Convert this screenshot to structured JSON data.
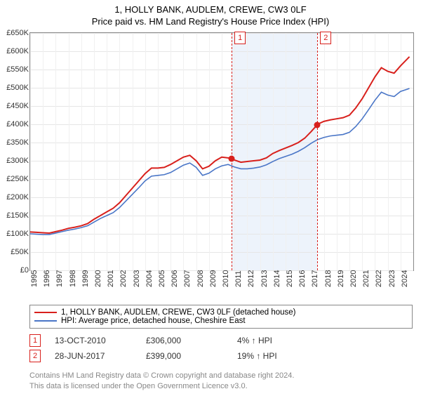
{
  "title_line1": "1, HOLLY BANK, AUDLEM, CREWE, CW3 0LF",
  "title_line2": "Price paid vs. HM Land Registry's House Price Index (HPI)",
  "chart": {
    "type": "line",
    "background_color": "#ffffff",
    "grid_color": "#e6e6e6",
    "border_color": "#888888",
    "x_years": [
      1995,
      1996,
      1997,
      1998,
      1999,
      2000,
      2001,
      2002,
      2003,
      2004,
      2005,
      2006,
      2007,
      2008,
      2009,
      2010,
      2011,
      2012,
      2013,
      2014,
      2015,
      2016,
      2017,
      2018,
      2019,
      2020,
      2021,
      2022,
      2023,
      2024
    ],
    "x_range": [
      1995,
      2025
    ],
    "y_ticks": [
      0,
      50000,
      100000,
      150000,
      200000,
      250000,
      300000,
      350000,
      400000,
      450000,
      500000,
      550000,
      600000,
      650000
    ],
    "y_tick_labels": [
      "£0",
      "£50K",
      "£100K",
      "£150K",
      "£200K",
      "£250K",
      "£300K",
      "£350K",
      "£400K",
      "£450K",
      "£500K",
      "£550K",
      "£600K",
      "£650K"
    ],
    "y_range": [
      0,
      650000
    ],
    "shaded_region": {
      "x_start": 2010.78,
      "x_end": 2017.49,
      "color": "#edf3fb"
    },
    "series": [
      {
        "id": "property",
        "label": "1, HOLLY BANK, AUDLEM, CREWE, CW3 0LF (detached house)",
        "color": "#d8201c",
        "width": 2,
        "points": [
          [
            1995.0,
            105000
          ],
          [
            1995.5,
            104000
          ],
          [
            1996.0,
            103000
          ],
          [
            1996.5,
            102000
          ],
          [
            1997.0,
            106000
          ],
          [
            1997.5,
            110000
          ],
          [
            1998.0,
            115000
          ],
          [
            1998.5,
            118000
          ],
          [
            1999.0,
            122000
          ],
          [
            1999.5,
            128000
          ],
          [
            2000.0,
            140000
          ],
          [
            2000.5,
            150000
          ],
          [
            2001.0,
            160000
          ],
          [
            2001.5,
            170000
          ],
          [
            2002.0,
            185000
          ],
          [
            2002.5,
            205000
          ],
          [
            2003.0,
            225000
          ],
          [
            2003.5,
            245000
          ],
          [
            2004.0,
            265000
          ],
          [
            2004.5,
            280000
          ],
          [
            2005.0,
            280000
          ],
          [
            2005.5,
            282000
          ],
          [
            2006.0,
            290000
          ],
          [
            2006.5,
            300000
          ],
          [
            2007.0,
            310000
          ],
          [
            2007.5,
            315000
          ],
          [
            2008.0,
            300000
          ],
          [
            2008.5,
            278000
          ],
          [
            2009.0,
            285000
          ],
          [
            2009.5,
            300000
          ],
          [
            2010.0,
            310000
          ],
          [
            2010.5,
            308000
          ],
          [
            2010.78,
            306000
          ],
          [
            2011.0,
            302000
          ],
          [
            2011.5,
            296000
          ],
          [
            2012.0,
            298000
          ],
          [
            2012.5,
            300000
          ],
          [
            2013.0,
            302000
          ],
          [
            2013.5,
            308000
          ],
          [
            2014.0,
            320000
          ],
          [
            2014.5,
            328000
          ],
          [
            2015.0,
            335000
          ],
          [
            2015.5,
            342000
          ],
          [
            2016.0,
            350000
          ],
          [
            2016.5,
            362000
          ],
          [
            2017.0,
            380000
          ],
          [
            2017.49,
            399000
          ],
          [
            2017.5,
            400000
          ],
          [
            2018.0,
            408000
          ],
          [
            2018.5,
            412000
          ],
          [
            2019.0,
            415000
          ],
          [
            2019.5,
            418000
          ],
          [
            2020.0,
            425000
          ],
          [
            2020.5,
            445000
          ],
          [
            2021.0,
            470000
          ],
          [
            2021.5,
            500000
          ],
          [
            2022.0,
            530000
          ],
          [
            2022.5,
            555000
          ],
          [
            2023.0,
            545000
          ],
          [
            2023.5,
            540000
          ],
          [
            2024.0,
            560000
          ],
          [
            2024.7,
            585000
          ]
        ]
      },
      {
        "id": "hpi",
        "label": "HPI: Average price, detached house, Cheshire East",
        "color": "#4a76c7",
        "width": 1.6,
        "points": [
          [
            1995.0,
            100000
          ],
          [
            1995.5,
            99000
          ],
          [
            1996.0,
            98000
          ],
          [
            1996.5,
            98000
          ],
          [
            1997.0,
            102000
          ],
          [
            1997.5,
            106000
          ],
          [
            1998.0,
            110000
          ],
          [
            1998.5,
            113000
          ],
          [
            1999.0,
            117000
          ],
          [
            1999.5,
            122000
          ],
          [
            2000.0,
            132000
          ],
          [
            2000.5,
            142000
          ],
          [
            2001.0,
            150000
          ],
          [
            2001.5,
            158000
          ],
          [
            2002.0,
            172000
          ],
          [
            2002.5,
            190000
          ],
          [
            2003.0,
            208000
          ],
          [
            2003.5,
            226000
          ],
          [
            2004.0,
            245000
          ],
          [
            2004.5,
            258000
          ],
          [
            2005.0,
            260000
          ],
          [
            2005.5,
            262000
          ],
          [
            2006.0,
            268000
          ],
          [
            2006.5,
            278000
          ],
          [
            2007.0,
            288000
          ],
          [
            2007.5,
            294000
          ],
          [
            2008.0,
            282000
          ],
          [
            2008.5,
            260000
          ],
          [
            2009.0,
            266000
          ],
          [
            2009.5,
            278000
          ],
          [
            2010.0,
            286000
          ],
          [
            2010.5,
            290000
          ],
          [
            2011.0,
            283000
          ],
          [
            2011.5,
            278000
          ],
          [
            2012.0,
            278000
          ],
          [
            2012.5,
            280000
          ],
          [
            2013.0,
            283000
          ],
          [
            2013.5,
            289000
          ],
          [
            2014.0,
            298000
          ],
          [
            2014.5,
            306000
          ],
          [
            2015.0,
            312000
          ],
          [
            2015.5,
            318000
          ],
          [
            2016.0,
            326000
          ],
          [
            2016.5,
            336000
          ],
          [
            2017.0,
            348000
          ],
          [
            2017.5,
            358000
          ],
          [
            2018.0,
            364000
          ],
          [
            2018.5,
            368000
          ],
          [
            2019.0,
            370000
          ],
          [
            2019.5,
            372000
          ],
          [
            2020.0,
            378000
          ],
          [
            2020.5,
            394000
          ],
          [
            2021.0,
            415000
          ],
          [
            2021.5,
            440000
          ],
          [
            2022.0,
            466000
          ],
          [
            2022.5,
            488000
          ],
          [
            2023.0,
            480000
          ],
          [
            2023.5,
            476000
          ],
          [
            2024.0,
            490000
          ],
          [
            2024.7,
            498000
          ]
        ]
      }
    ],
    "event_markers": [
      {
        "num": "1",
        "x": 2010.78,
        "y": 306000,
        "color": "#d8201c"
      },
      {
        "num": "2",
        "x": 2017.49,
        "y": 399000,
        "color": "#d8201c"
      }
    ]
  },
  "legend": [
    {
      "color": "#d8201c",
      "label": "1, HOLLY BANK, AUDLEM, CREWE, CW3 0LF (detached house)"
    },
    {
      "color": "#4a76c7",
      "label": "HPI: Average price, detached house, Cheshire East"
    }
  ],
  "transactions": [
    {
      "num": "1",
      "color": "#d8201c",
      "date": "13-OCT-2010",
      "price": "£306,000",
      "vs": "4% ↑ HPI"
    },
    {
      "num": "2",
      "color": "#d8201c",
      "date": "28-JUN-2017",
      "price": "£399,000",
      "vs": "19% ↑ HPI"
    }
  ],
  "footer_line1": "Contains HM Land Registry data © Crown copyright and database right 2024.",
  "footer_line2": "This data is licensed under the Open Government Licence v3.0."
}
